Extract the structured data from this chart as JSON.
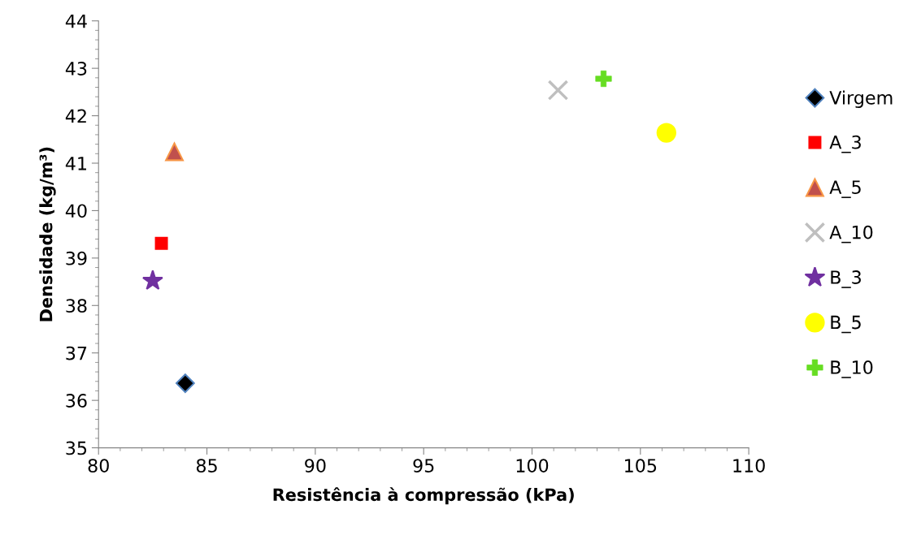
{
  "chart_data": {
    "type": "scatter",
    "xlabel": "Resistência à compressão (kPa)",
    "ylabel": "Densidade (kg/m³)",
    "xlim": [
      80,
      110
    ],
    "xticks": [
      80,
      85,
      90,
      95,
      100,
      105,
      110
    ],
    "ylim": [
      35,
      44
    ],
    "yticks": [
      35,
      36,
      37,
      38,
      39,
      40,
      41,
      42,
      43,
      44
    ],
    "grid": false,
    "legend": "right",
    "series": [
      {
        "name": "Virgem",
        "color": "#000000",
        "marker": "diamond",
        "x": [
          84.0
        ],
        "values": [
          36.36
        ]
      },
      {
        "name": "A_3",
        "color": "#ff0000",
        "marker": "square",
        "x": [
          82.9
        ],
        "values": [
          39.31
        ]
      },
      {
        "name": "A_5",
        "color": "#c0504d",
        "marker": "triangle",
        "x": [
          83.5
        ],
        "values": [
          41.24
        ]
      },
      {
        "name": "A_10",
        "color": "#bfbfbf",
        "marker": "cross",
        "x": [
          101.2
        ],
        "values": [
          42.54
        ]
      },
      {
        "name": "B_3",
        "color": "#7030a0",
        "marker": "star",
        "x": [
          82.5
        ],
        "values": [
          38.52
        ]
      },
      {
        "name": "B_5",
        "color": "#ffff00",
        "marker": "circle",
        "x": [
          106.2
        ],
        "values": [
          41.64
        ]
      },
      {
        "name": "B_10",
        "color": "#66dd22",
        "x": [
          103.3
        ],
        "values": [
          42.78
        ]
      }
    ]
  }
}
